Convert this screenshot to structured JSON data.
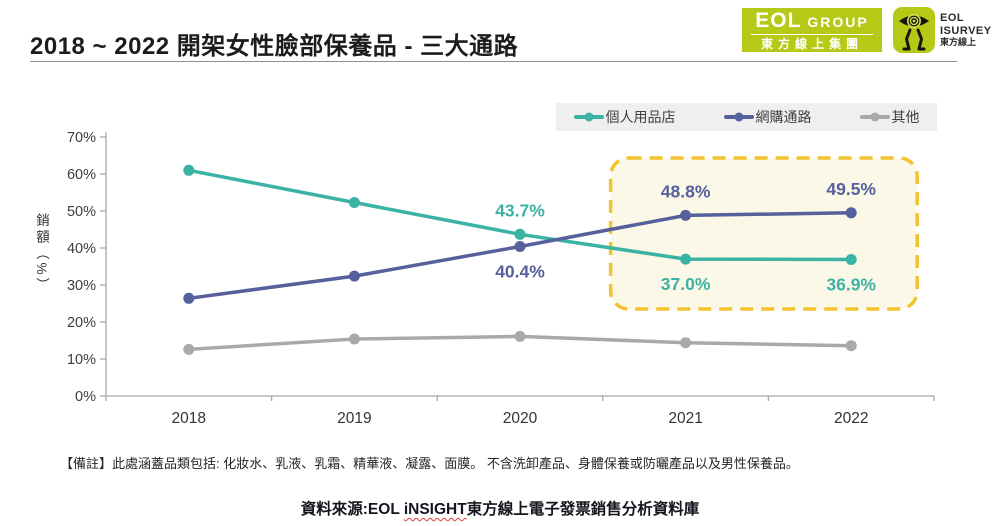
{
  "header": {
    "title": "2018 ~ 2022 開架女性臉部保養品 - 三大通路",
    "logo_group": {
      "eol": "EOL",
      "group": "GROUP",
      "cjk": "東方線上集團"
    },
    "logo_isurvey": {
      "line1": "EOL",
      "line2": "ISURVEY",
      "line3": "東方線上"
    }
  },
  "chart_data": {
    "type": "line",
    "title": "2018 ~ 2022 開架女性臉部保養品 - 三大通路",
    "categories": [
      "2018",
      "2019",
      "2020",
      "2021",
      "2022"
    ],
    "series": [
      {
        "name": "個人用品店",
        "color": "#3AB3A5",
        "values": [
          61.0,
          52.3,
          43.7,
          37.0,
          36.9
        ],
        "labels": [
          null,
          null,
          {
            "text": "43.7%",
            "placement": "above"
          },
          {
            "text": "37.0%",
            "placement": "below"
          },
          {
            "text": "36.9%",
            "placement": "below"
          }
        ]
      },
      {
        "name": "網購通路",
        "color": "#55609C",
        "values": [
          26.4,
          32.4,
          40.4,
          48.8,
          49.5
        ],
        "labels": [
          null,
          null,
          {
            "text": "40.4%",
            "placement": "below"
          },
          {
            "text": "48.8%",
            "placement": "above"
          },
          {
            "text": "49.5%",
            "placement": "above"
          }
        ]
      },
      {
        "name": "其他",
        "color": "#A9A9A9",
        "values": [
          12.6,
          15.4,
          16.1,
          14.4,
          13.6
        ],
        "labels": [
          null,
          null,
          null,
          null,
          null
        ]
      }
    ],
    "ylabel": "銷額（%）",
    "ylim": [
      0,
      70
    ],
    "ytick_step": 10,
    "ytick_suffix": "%",
    "grid": false,
    "legend_position": "top-right",
    "highlight_box": {
      "from": "2021",
      "to": "2022",
      "border_color": "#F2C230",
      "fill_color": "#FBF8E8"
    }
  },
  "colors": {
    "legend_bg": "#EFEFEF",
    "axis": "#A8A8A8",
    "tick_label": "#3D3D3D",
    "logo_green": "#B5C916"
  },
  "footnote": "【備註】此處涵蓋品類包括: 化妝水、乳液、乳霜、精華液、凝露、面膜。 不含洗卸產品、身體保養或防曬產品以及男性保養品。",
  "source": {
    "prefix": "資料來源:EOL ",
    "highlighted": "iNSIGHT",
    "suffix": "東方線上電子發票銷售分析資料庫"
  }
}
